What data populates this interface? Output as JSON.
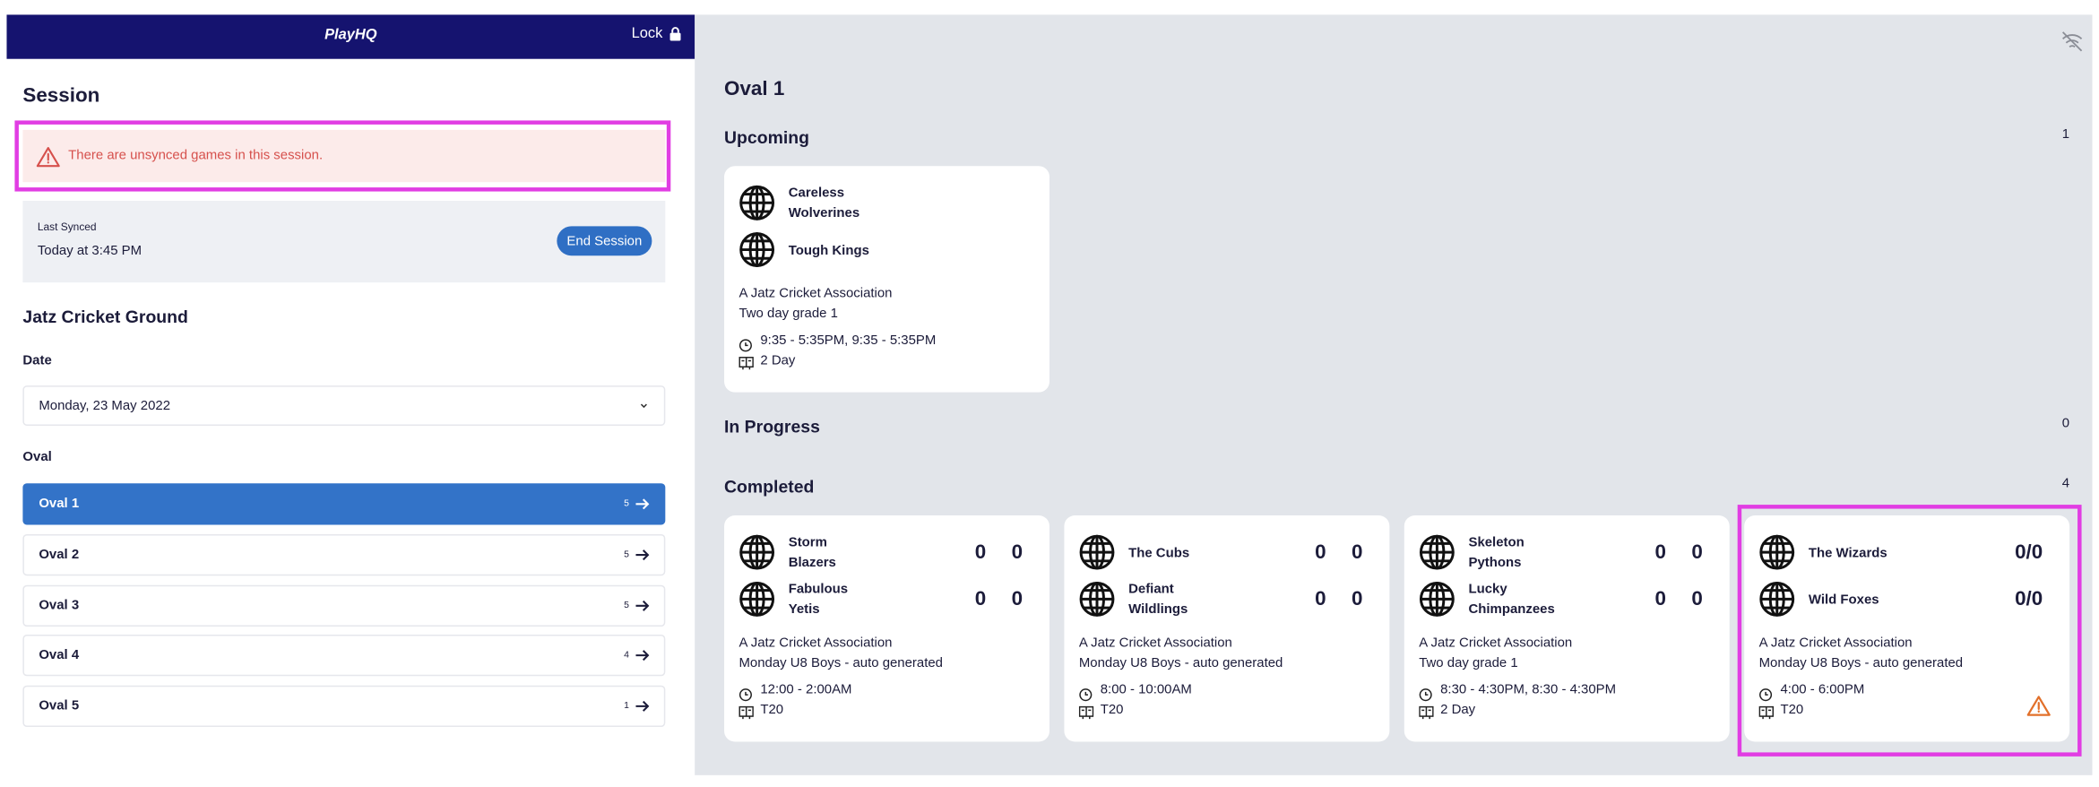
{
  "header": {
    "logo": "PlayHQ",
    "lock": "Lock"
  },
  "session": {
    "title": "Session",
    "alert": "There are unsynced games in this session.",
    "last_synced_label": "Last Synced",
    "last_synced": "Today at 3:45 PM",
    "end_button": "End Session",
    "ground": "Jatz Cricket Ground",
    "date_label": "Date",
    "date": "Monday, 23 May 2022",
    "oval_label": "Oval",
    "ovals": [
      {
        "name": "Oval 1",
        "count": 5,
        "selected": true
      },
      {
        "name": "Oval 2",
        "count": 5
      },
      {
        "name": "Oval 3",
        "count": 5
      },
      {
        "name": "Oval 4",
        "count": 4
      },
      {
        "name": "Oval 5",
        "count": 1
      }
    ]
  },
  "main": {
    "title": "Oval 1",
    "sections": [
      {
        "title": "Upcoming",
        "count": 1,
        "games": [
          {
            "teams": [
              {
                "name": "Careless\nWolverines"
              },
              {
                "name": "Tough Kings"
              }
            ],
            "association": "A Jatz Cricket Association",
            "grade": "Two day grade 1",
            "time": "9:35 - 5:35PM, 9:35 - 5:35PM",
            "format": "2 Day"
          }
        ]
      },
      {
        "title": "In Progress",
        "count": 0,
        "games": []
      },
      {
        "title": "Completed",
        "count": 4,
        "games": [
          {
            "teams": [
              {
                "name": "Storm\nBlazers",
                "scores": [
                  0,
                  0
                ]
              },
              {
                "name": "Fabulous\nYetis",
                "scores": [
                  0,
                  0
                ]
              }
            ],
            "association": "A Jatz Cricket Association",
            "grade": "Monday U8 Boys - auto generated",
            "time": "12:00 - 2:00AM",
            "format": "T20"
          },
          {
            "teams": [
              {
                "name": "The Cubs",
                "scores": [
                  0,
                  0
                ]
              },
              {
                "name": "Defiant\nWildlings",
                "scores": [
                  0,
                  0
                ]
              }
            ],
            "association": "A Jatz Cricket Association",
            "grade": "Monday U8 Boys - auto generated",
            "time": "8:00 - 10:00AM",
            "format": "T20"
          },
          {
            "teams": [
              {
                "name": "Skeleton\nPythons",
                "scores": [
                  0,
                  0
                ]
              },
              {
                "name": "Lucky\nChimpanzees",
                "scores": [
                  0,
                  0
                ]
              }
            ],
            "association": "A Jatz Cricket Association",
            "grade": "Two day grade 1",
            "time": "8:30 - 4:30PM, 8:30 - 4:30PM",
            "format": "2 Day"
          },
          {
            "teams": [
              {
                "name": "The Wizards",
                "score": "0/0"
              },
              {
                "name": "Wild Foxes",
                "score": "0/0"
              }
            ],
            "association": "A Jatz Cricket Association",
            "grade": "Monday U8 Boys - auto generated",
            "time": "4:00 - 6:00PM",
            "format": "T20",
            "unsynced": true
          }
        ]
      }
    ]
  }
}
